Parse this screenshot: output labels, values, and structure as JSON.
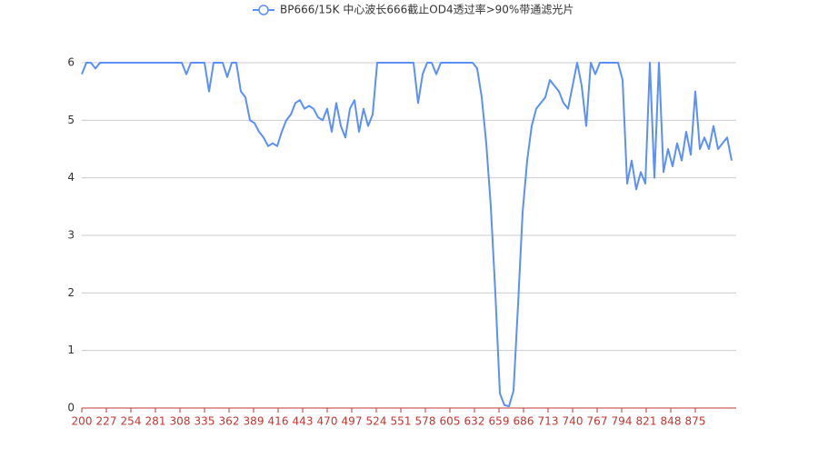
{
  "chart_data": {
    "type": "line",
    "series": [
      {
        "name": "BP666/15K 中心波长666截止OD4透过率>90%带通滤光片",
        "color": "#5b8ff9",
        "values": [
          5.8,
          6,
          6,
          5.9,
          6,
          6,
          6,
          6,
          6,
          6,
          6,
          6,
          6,
          6,
          6,
          6,
          6,
          6,
          6,
          6,
          6,
          6,
          6,
          5.8,
          6,
          6,
          6,
          6,
          5.5,
          6,
          6,
          6,
          5.75,
          6,
          6,
          5.5,
          5.4,
          5.0,
          4.95,
          4.8,
          4.7,
          4.55,
          4.6,
          4.55,
          4.8,
          5.0,
          5.1,
          5.3,
          5.35,
          5.2,
          5.25,
          5.2,
          5.05,
          5.0,
          5.2,
          4.8,
          5.3,
          4.9,
          4.7,
          5.2,
          5.35,
          4.8,
          5.2,
          4.9,
          5.1,
          6,
          6,
          6,
          6,
          6,
          6,
          6,
          6,
          6,
          5.3,
          5.8,
          6,
          6,
          5.8,
          6,
          6,
          6,
          6,
          6,
          6,
          6,
          6,
          5.9,
          5.4,
          4.6,
          3.5,
          2.0,
          0.25,
          0.05,
          0.03,
          0.3,
          1.8,
          3.4,
          4.3,
          4.9,
          5.2,
          5.3,
          5.4,
          5.7,
          5.6,
          5.5,
          5.3,
          5.2,
          5.6,
          6,
          5.6,
          4.9,
          6,
          5.8,
          6,
          6,
          6,
          6,
          6,
          5.7,
          3.9,
          4.3,
          3.8,
          4.1,
          3.9,
          6,
          4.0,
          6,
          4.1,
          4.5,
          4.2,
          4.6,
          4.3,
          4.8,
          4.4,
          5.5,
          4.5,
          4.7,
          4.5,
          4.9,
          4.5,
          4.6,
          4.7,
          4.3
        ]
      }
    ],
    "x": [
      200,
      205,
      210,
      215,
      220,
      225,
      230,
      235,
      240,
      245,
      250,
      255,
      260,
      265,
      270,
      275,
      280,
      285,
      290,
      295,
      300,
      305,
      310,
      315,
      320,
      325,
      330,
      335,
      340,
      345,
      350,
      355,
      360,
      365,
      370,
      375,
      380,
      385,
      390,
      395,
      400,
      405,
      410,
      415,
      420,
      425,
      430,
      435,
      440,
      445,
      450,
      455,
      460,
      465,
      470,
      475,
      480,
      485,
      490,
      495,
      500,
      505,
      510,
      515,
      520,
      525,
      530,
      535,
      540,
      545,
      550,
      555,
      560,
      565,
      570,
      575,
      580,
      585,
      590,
      595,
      600,
      605,
      610,
      615,
      620,
      625,
      630,
      635,
      640,
      645,
      650,
      655,
      660,
      665,
      670,
      675,
      680,
      685,
      690,
      695,
      700,
      705,
      710,
      715,
      720,
      725,
      730,
      735,
      740,
      745,
      750,
      755,
      760,
      765,
      770,
      775,
      780,
      785,
      790,
      795,
      800,
      805,
      810,
      815,
      820,
      825,
      830,
      835,
      840,
      845,
      850,
      855,
      860,
      865,
      870,
      875,
      880,
      885,
      890,
      895,
      900,
      905,
      910,
      915
    ],
    "xlim": [
      200,
      920
    ],
    "xticks": [
      200,
      227,
      254,
      281,
      308,
      335,
      362,
      389,
      416,
      443,
      470,
      497,
      524,
      551,
      578,
      605,
      632,
      659,
      686,
      713,
      740,
      767,
      794,
      821,
      848,
      875
    ],
    "ylim": [
      0,
      6
    ],
    "yticks": [
      0,
      1,
      2,
      3,
      4,
      5,
      6
    ],
    "grid": true,
    "axis_color": "#c23531"
  }
}
